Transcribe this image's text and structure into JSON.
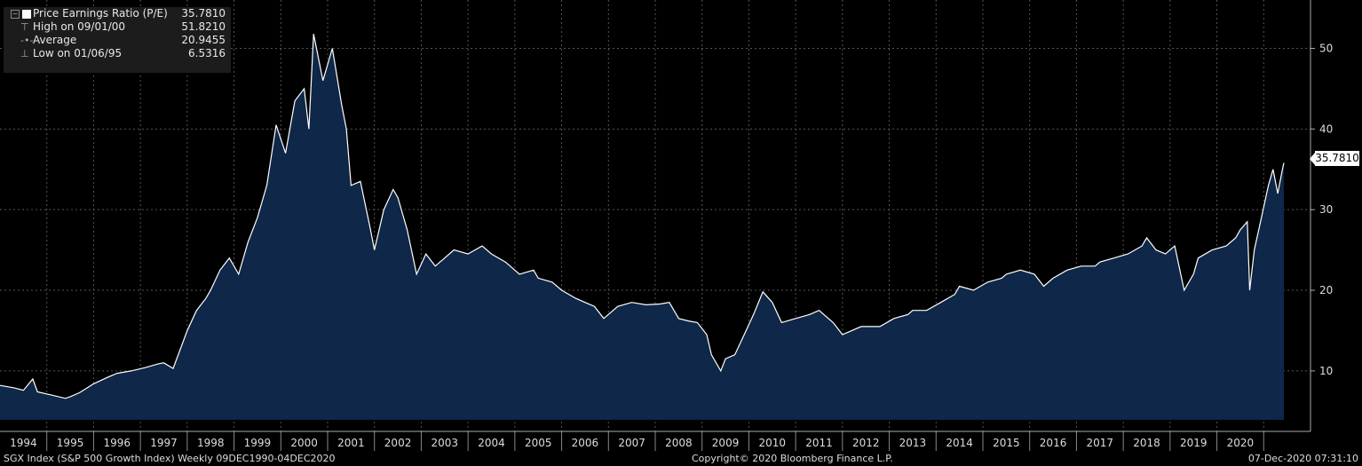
{
  "legend": {
    "series_label": "Price Earnings Ratio (P/E)",
    "series_value": "35.7810",
    "high_label": "High on 09/01/00",
    "high_value": "51.8210",
    "avg_label": "Average",
    "avg_value": "20.9455",
    "low_label": "Low on 01/06/95",
    "low_value": "6.5316"
  },
  "footer": {
    "left": "SGX Index (S&P 500 Growth Index)  Weekly 09DEC1990-04DEC2020",
    "center": "Copyright© 2020 Bloomberg Finance L.P.",
    "right": "07-Dec-2020 07:31:10"
  },
  "last_value_label": "35.7810",
  "colors": {
    "background": "#000000",
    "area_fill": "#0f2748",
    "line": "#ffffff",
    "grid": "#555555"
  },
  "chart_data": {
    "type": "area",
    "title": "Price Earnings Ratio (P/E)",
    "xlabel": "",
    "ylabel": "",
    "x_tick_labels": [
      "1994",
      "1995",
      "1996",
      "1997",
      "1998",
      "1999",
      "2000",
      "2001",
      "2002",
      "2003",
      "2004",
      "2005",
      "2006",
      "2007",
      "2008",
      "2009",
      "2010",
      "2011",
      "2012",
      "2013",
      "2014",
      "2015",
      "2016",
      "2017",
      "2018",
      "2019",
      "2020"
    ],
    "y_ticks": [
      10,
      20,
      30,
      40,
      50
    ],
    "ylim": [
      2.5,
      56
    ],
    "xlim": [
      1993.5,
      2021.5
    ],
    "grid": true,
    "y_axis_side": "right",
    "series": [
      {
        "name": "Price Earnings Ratio (P/E)",
        "x": [
          1993.5,
          1993.8,
          1994.0,
          1994.2,
          1994.3,
          1994.6,
          1994.9,
          1995.0,
          1995.2,
          1995.5,
          1995.8,
          1996.0,
          1996.3,
          1996.6,
          1996.9,
          1997.0,
          1997.2,
          1997.5,
          1997.7,
          1997.9,
          1998.0,
          1998.2,
          1998.4,
          1998.6,
          1998.8,
          1999.0,
          1999.2,
          1999.4,
          1999.6,
          1999.8,
          2000.0,
          2000.1,
          2000.2,
          2000.4,
          2000.6,
          2000.8,
          2000.9,
          2001.0,
          2001.2,
          2001.4,
          2001.5,
          2001.7,
          2001.9,
          2002.0,
          2002.2,
          2002.4,
          2002.6,
          2002.8,
          2003.0,
          2003.2,
          2003.5,
          2003.8,
          2004.0,
          2004.3,
          2004.6,
          2004.9,
          2005.0,
          2005.3,
          2005.5,
          2005.8,
          2006.0,
          2006.2,
          2006.4,
          2006.7,
          2007.0,
          2007.3,
          2007.6,
          2007.8,
          2008.0,
          2008.2,
          2008.4,
          2008.6,
          2008.7,
          2008.9,
          2009.0,
          2009.2,
          2009.4,
          2009.6,
          2009.8,
          2010.0,
          2010.2,
          2010.5,
          2010.8,
          2011.0,
          2011.3,
          2011.5,
          2011.7,
          2011.9,
          2012.0,
          2012.3,
          2012.6,
          2012.9,
          2013.0,
          2013.3,
          2013.6,
          2013.9,
          2014.0,
          2014.3,
          2014.6,
          2014.9,
          2015.0,
          2015.3,
          2015.6,
          2015.8,
          2016.0,
          2016.3,
          2016.6,
          2016.9,
          2017.0,
          2017.3,
          2017.6,
          2017.9,
          2018.0,
          2018.2,
          2018.4,
          2018.6,
          2018.8,
          2019.0,
          2019.1,
          2019.4,
          2019.7,
          2019.9,
          2020.0,
          2020.15,
          2020.2,
          2020.3,
          2020.45,
          2020.6,
          2020.7,
          2020.8,
          2020.9,
          2020.93
        ],
        "values": [
          8.2,
          7.9,
          7.6,
          9.0,
          7.4,
          7.0,
          6.6,
          6.8,
          7.3,
          8.4,
          9.2,
          9.7,
          10.0,
          10.4,
          10.9,
          11.0,
          10.3,
          15.0,
          17.5,
          19.0,
          20.0,
          22.5,
          24.0,
          22.0,
          26.0,
          29.0,
          33.0,
          40.5,
          37.0,
          43.5,
          45.0,
          40.0,
          51.8,
          46.0,
          50.0,
          43.0,
          40.0,
          33.0,
          33.5,
          28.0,
          25.0,
          30.0,
          32.5,
          31.5,
          27.5,
          22.0,
          24.5,
          23.0,
          24.0,
          25.0,
          24.5,
          25.5,
          24.5,
          23.5,
          22.0,
          22.5,
          21.5,
          21.0,
          20.0,
          19.0,
          18.5,
          18.0,
          16.5,
          18.0,
          18.5,
          18.2,
          18.3,
          18.5,
          16.5,
          16.2,
          16.0,
          14.5,
          12.0,
          10.0,
          11.5,
          12.0,
          14.5,
          17.0,
          19.8,
          18.5,
          16.0,
          16.5,
          17.0,
          17.5,
          16.0,
          14.5,
          15.0,
          15.5,
          15.5,
          15.5,
          16.5,
          17.0,
          17.5,
          17.5,
          18.5,
          19.5,
          20.5,
          20.0,
          21.0,
          21.5,
          22.0,
          22.5,
          22.0,
          20.5,
          21.5,
          22.5,
          23.0,
          23.0,
          23.5,
          24.0,
          24.5,
          25.5,
          26.5,
          25.0,
          24.5,
          25.5,
          20.0,
          22.0,
          24.0,
          25.0,
          25.5,
          26.5,
          27.5,
          28.5,
          20.0,
          25.0,
          29.0,
          33.0,
          35.0,
          32.0,
          35.0,
          35.8
        ]
      }
    ]
  }
}
